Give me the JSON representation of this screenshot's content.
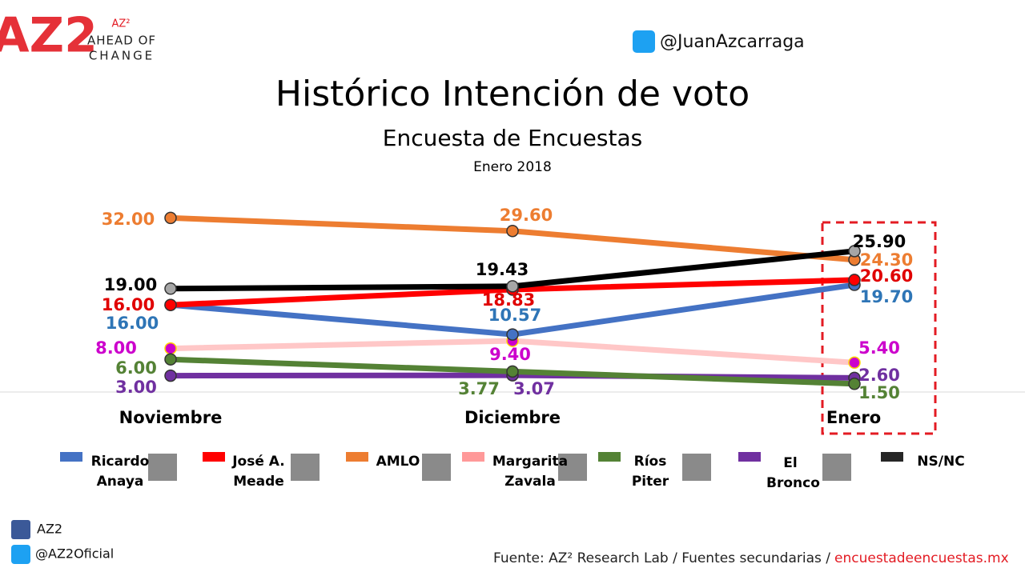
{
  "header": {
    "logo": "AZ2",
    "logo_sup": "AZ²",
    "tagline_1": "AHEAD OF",
    "tagline_2": "CHANGE",
    "twitter": "@JuanAzcarraga"
  },
  "chart_data": {
    "type": "line",
    "title": "Histórico Intención de voto",
    "subtitle": "Encuesta de Encuestas",
    "date": "Enero 2018",
    "categories": [
      "Noviembre",
      "Diciembre",
      "Enero"
    ],
    "ylim": [
      0,
      35
    ],
    "series": [
      {
        "name": "Ricardo Anaya",
        "color": "#4472c4",
        "label_color": "#2e75b6",
        "values": [
          16,
          10.57,
          19.7
        ],
        "value_labels": [
          "16.00",
          "10.57",
          "19.70"
        ]
      },
      {
        "name": "José A. Meade",
        "color": "#ff0000",
        "label_color": "#e00000",
        "values": [
          16,
          18.83,
          20.6
        ],
        "value_labels": [
          "16.00",
          "18.83",
          "20.60"
        ]
      },
      {
        "name": "AMLO",
        "color": "#ed7d31",
        "label_color": "#ed7d31",
        "values": [
          32,
          29.6,
          24.3
        ],
        "value_labels": [
          "32.00",
          "29.60",
          "24.30"
        ]
      },
      {
        "name": "Margarita Zavala",
        "color": "#ffc7c7",
        "label_color": "#cc00cc",
        "values": [
          8,
          9.4,
          5.4
        ],
        "value_labels": [
          "8.00",
          "9.40",
          "5.40"
        ]
      },
      {
        "name": "Ríos Piter",
        "color": "#548235",
        "label_color": "#548235",
        "values": [
          6,
          3.77,
          1.5
        ],
        "value_labels": [
          "6.00",
          "3.77",
          "1.50"
        ]
      },
      {
        "name": "El Bronco",
        "color": "#7030a0",
        "label_color": "#7030a0",
        "values": [
          3,
          3.07,
          2.6
        ],
        "value_labels": [
          "3.00",
          "3.07",
          "2.60"
        ]
      },
      {
        "name": "NS/NC",
        "color": "#000000",
        "label_color": "#000000",
        "values": [
          19,
          19.43,
          25.9
        ],
        "value_labels": [
          "19.00",
          "19.43",
          "25.90"
        ]
      }
    ]
  },
  "footer": {
    "facebook": "AZ2",
    "twitter": "@AZ2Oficial",
    "source": "Fuente: AZ² Research Lab / Fuentes secundarias /",
    "link": "encuestadeencuestas.mx"
  }
}
